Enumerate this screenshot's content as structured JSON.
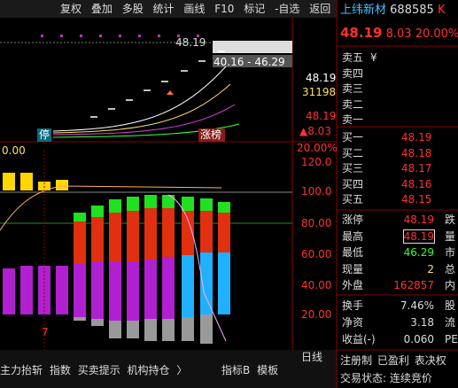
{
  "toolbar": [
    "复权",
    "叠加",
    "多股",
    "统计",
    "画线",
    "F10",
    "标记",
    "-自选",
    "返回"
  ],
  "quote": {
    "name": "上纬新材",
    "code": "688585",
    "suffix": "K",
    "price": "48.19",
    "change": "8.03",
    "pct": "20.00%"
  },
  "main_chart": {
    "price_tag": "48.19",
    "range": "40.16 - 46.29",
    "axis": [
      "48.19",
      "31198",
      "48.19",
      "▲8.03"
    ],
    "tag_stop": "停",
    "tag_rank": "涨榜"
  },
  "sub_chart": {
    "value": "0.00",
    "axis": [
      "20.00%",
      "120.0",
      "100.0",
      "80.00",
      "60.00",
      "40.00",
      "20.00"
    ],
    "day": "7"
  },
  "sell": [
    [
      "卖五",
      "¥"
    ],
    [
      "卖四",
      ""
    ],
    [
      "卖三",
      ""
    ],
    [
      "卖二",
      ""
    ],
    [
      "卖一",
      ""
    ]
  ],
  "buy": [
    [
      "买一",
      "48.19"
    ],
    [
      "买二",
      "48.18"
    ],
    [
      "买三",
      "48.17"
    ],
    [
      "买四",
      "48.16"
    ],
    [
      "买五",
      "48.15"
    ]
  ],
  "stats": [
    [
      "涨停",
      "48.19",
      "跌"
    ],
    [
      "最高",
      "48.19",
      "量"
    ],
    [
      "最低",
      "46.29",
      "市"
    ],
    [
      "现量",
      "2",
      "总"
    ],
    [
      "外盘",
      "162857",
      "内"
    ]
  ],
  "info": [
    [
      "换手",
      "7.46%",
      "股"
    ],
    [
      "净资",
      "3.18",
      "流"
    ],
    [
      "收益(-)",
      "0.060",
      "PE"
    ]
  ],
  "flags": [
    "注册制",
    "已盈利",
    "表决权"
  ],
  "status": {
    "label": "交易状态:",
    "value": "连续竞价"
  },
  "bottom_tabs": [
    "主力抬斩",
    "指数",
    "买卖提示",
    "机构持仓",
    "〉"
  ],
  "bottom_right": [
    "指标B",
    "模板"
  ],
  "period": "日线"
}
